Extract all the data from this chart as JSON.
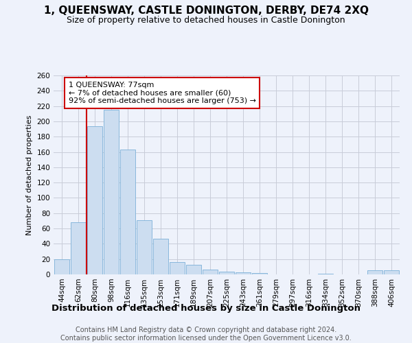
{
  "title": "1, QUEENSWAY, CASTLE DONINGTON, DERBY, DE74 2XQ",
  "subtitle": "Size of property relative to detached houses in Castle Donington",
  "xlabel": "Distribution of detached houses by size in Castle Donington",
  "ylabel": "Number of detached properties",
  "footer_line1": "Contains HM Land Registry data © Crown copyright and database right 2024.",
  "footer_line2": "Contains public sector information licensed under the Open Government Licence v3.0.",
  "categories": [
    "44sqm",
    "62sqm",
    "80sqm",
    "98sqm",
    "116sqm",
    "135sqm",
    "153sqm",
    "171sqm",
    "189sqm",
    "207sqm",
    "225sqm",
    "243sqm",
    "261sqm",
    "279sqm",
    "297sqm",
    "316sqm",
    "334sqm",
    "352sqm",
    "370sqm",
    "388sqm",
    "406sqm"
  ],
  "values": [
    20,
    68,
    194,
    215,
    163,
    71,
    47,
    16,
    13,
    6,
    4,
    3,
    2,
    0,
    0,
    0,
    1,
    0,
    0,
    5,
    5
  ],
  "bar_color": "#ccddf0",
  "bar_edge_color": "#7ab0d8",
  "vline_x": 1.5,
  "vline_color": "#cc0000",
  "annotation_text": "1 QUEENSWAY: 77sqm\n← 7% of detached houses are smaller (60)\n92% of semi-detached houses are larger (753) →",
  "annotation_edge_color": "#cc0000",
  "ylim": [
    0,
    260
  ],
  "yticks": [
    0,
    20,
    40,
    60,
    80,
    100,
    120,
    140,
    160,
    180,
    200,
    220,
    240,
    260
  ],
  "bg_color": "#eef2fb",
  "grid_color": "#c8ccd8",
  "title_fontsize": 11,
  "subtitle_fontsize": 9,
  "ylabel_fontsize": 8,
  "xlabel_fontsize": 9.5,
  "tick_fontsize": 7.5,
  "annotation_fontsize": 8,
  "footer_fontsize": 7
}
